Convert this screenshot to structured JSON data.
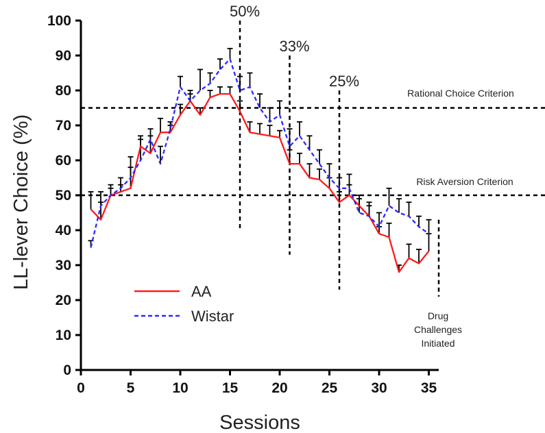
{
  "chart_data": {
    "type": "line",
    "xlabel": "Sessions",
    "ylabel": "LL-lever Choice (%)",
    "xlim": [
      0,
      36
    ],
    "ylim": [
      0,
      100
    ],
    "xticks": [
      "0",
      "5",
      "10",
      "15",
      "20",
      "25",
      "30",
      "35"
    ],
    "yticks": [
      "0",
      "10",
      "20",
      "30",
      "40",
      "50",
      "60",
      "70",
      "80",
      "90",
      "100"
    ],
    "x": [
      1,
      2,
      3,
      4,
      5,
      6,
      7,
      8,
      9,
      10,
      11,
      12,
      13,
      14,
      15,
      16,
      17,
      18,
      19,
      20,
      21,
      22,
      23,
      24,
      25,
      26,
      27,
      28,
      29,
      30,
      31,
      32,
      33,
      34,
      35
    ],
    "series": [
      {
        "name": "AA",
        "color": "#ff1a1a",
        "style": "solid",
        "values": [
          46,
          43,
          50,
          51,
          52,
          64,
          62,
          68,
          68,
          73,
          77,
          73,
          78,
          79,
          79,
          74,
          68,
          67.5,
          67,
          66.5,
          59,
          59,
          55,
          54.5,
          52,
          48,
          50,
          47,
          44,
          39,
          38,
          28,
          32,
          30.5,
          34
        ],
        "errors": [
          5,
          5,
          3,
          2,
          9,
          3,
          5,
          4,
          2,
          3,
          2,
          2,
          2,
          2,
          2,
          3,
          3,
          3,
          3,
          2,
          4,
          3,
          4,
          3,
          3,
          3,
          3,
          3,
          3,
          2,
          4,
          2,
          4,
          4,
          5
        ]
      },
      {
        "name": "Wistar",
        "color": "#2a2aff",
        "style": "dashed",
        "values": [
          35,
          47,
          50,
          52,
          55,
          60,
          66,
          59,
          69,
          81,
          77,
          80,
          82,
          86,
          89,
          80,
          81,
          75,
          71,
          73,
          64,
          67,
          63,
          59,
          55,
          52,
          52,
          45,
          44,
          41,
          47,
          45,
          44,
          41,
          39
        ],
        "errors": [
          2,
          4,
          2,
          3,
          3,
          6,
          3,
          5,
          2,
          3,
          3,
          6,
          3,
          3,
          3,
          4,
          4,
          4,
          4,
          4,
          5,
          4,
          4,
          4,
          4,
          3,
          4,
          4,
          4,
          4,
          5,
          4,
          4,
          3,
          4
        ]
      }
    ],
    "reference_lines": [
      {
        "orientation": "horizontal",
        "y": 75,
        "label": "Rational Choice Criterion"
      },
      {
        "orientation": "horizontal",
        "y": 50,
        "label": "Risk Aversion Criterion"
      },
      {
        "orientation": "vertical",
        "x": 16,
        "y_from": 40,
        "y_to": 100,
        "label": "50%"
      },
      {
        "orientation": "vertical",
        "x": 21,
        "y_from": 33,
        "y_to": 90,
        "label": "33%"
      },
      {
        "orientation": "vertical",
        "x": 26,
        "y_from": 23,
        "y_to": 80,
        "label": "25%"
      },
      {
        "orientation": "vertical",
        "x": 36,
        "y_from": 21,
        "y_to": 43,
        "label": ""
      }
    ],
    "annotation_lines": [
      "Drug",
      "Challenges",
      "Initiated"
    ],
    "legend_position": "lower-left",
    "grid": false
  }
}
